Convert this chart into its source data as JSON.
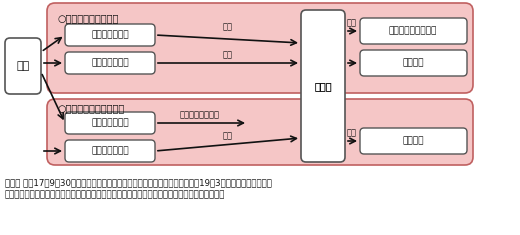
{
  "bg_color": "#ffffff",
  "pink_bg": "#f5c6c6",
  "pink_bg2": "#f5c6c6",
  "box_fill": "#ffffff",
  "box_edge": "#333333",
  "arrow_color": "#111111",
  "text_color": "#111111",
  "note_text": "（注） 平成17年9月30日までに解散した基金の解散基金加入員で、かつ、平成19年3月までに残余財産分配\n金を連合会に移換した者に対しては「通算企業年金」ではなく「代行加算年金」を支給します。",
  "font_size_main": 7,
  "font_size_note": 6.2,
  "kikin_label": "基金",
  "rengokai_label": "連合会",
  "top_section_label": "○年金を選択した場合",
  "bottom_section_label": "○一時金を選択した場合",
  "top_box1": "残余財産分配金",
  "top_box2": "最低責任準備金",
  "bottom_box1": "残余財産分配金",
  "bottom_box2": "最低責任準備金",
  "right_top_box1": "通算企業年金（注）",
  "right_top_box2": "代行年金",
  "right_bottom_box": "代行年金",
  "arrow_top1_label": "移換",
  "arrow_top2_label": "納付",
  "arrow_bottom1_label": "一時金として受給",
  "arrow_bottom2_label": "納付",
  "arrow_right_top_label": "給付",
  "arrow_right_bottom_label": "給付"
}
